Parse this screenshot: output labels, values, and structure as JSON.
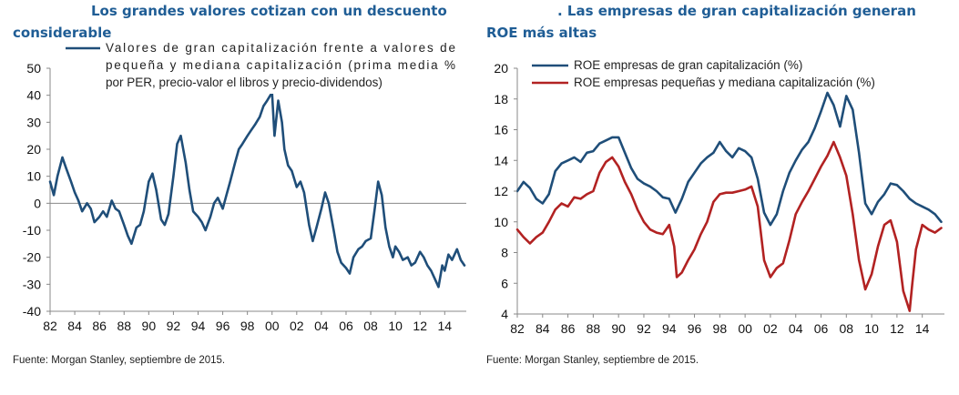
{
  "left": {
    "title_line1": "Los grandes valores cotizan con un descuento",
    "title_line2": "considerable",
    "source": "Fuente: Morgan Stanley, septiembre de 2015."
  },
  "right": {
    "title_line1": ". Las empresas de gran capitalización generan",
    "title_line2": "ROE más altas",
    "source": "Fuente: Morgan Stanley, septiembre de 2015."
  },
  "colors": {
    "blue": "#1f4e79",
    "red": "#b22222",
    "title": "#1f5d95"
  },
  "chart_data": [
    {
      "type": "line",
      "title": "Los grandes valores cotizan con un descuento considerable",
      "xlabel": "",
      "ylabel": "",
      "xlim": [
        1982,
        2015.75
      ],
      "ylim": [
        -40,
        50
      ],
      "y_ticks": [
        50,
        40,
        30,
        20,
        10,
        0,
        -10,
        -20,
        -30,
        -40
      ],
      "x_tick_labels": [
        "82",
        "84",
        "86",
        "88",
        "90",
        "92",
        "94",
        "96",
        "98",
        "00",
        "02",
        "04",
        "06",
        "08",
        "10",
        "12",
        "14"
      ],
      "legend": [
        "Valores de gran capitalización frente a valores de",
        "pequeña y mediana capitalización (prima media %",
        "por PER, precio-valor el libros y precio-dividendos)"
      ],
      "series": [
        {
          "name": "Valores de gran capitalización frente a valores de pequeña y mediana capitalización (prima media % por PER, precio-valor el libros y precio-dividendos)",
          "x": [
            1982.0,
            1982.3,
            1982.6,
            1983.0,
            1983.3,
            1983.7,
            1984.0,
            1984.3,
            1984.6,
            1985.0,
            1985.3,
            1985.6,
            1986.0,
            1986.3,
            1986.6,
            1987.0,
            1987.3,
            1987.6,
            1988.0,
            1988.3,
            1988.6,
            1989.0,
            1989.3,
            1989.6,
            1990.0,
            1990.3,
            1990.6,
            1991.0,
            1991.3,
            1991.6,
            1992.0,
            1992.3,
            1992.6,
            1993.0,
            1993.3,
            1993.6,
            1994.0,
            1994.3,
            1994.6,
            1995.0,
            1995.3,
            1995.6,
            1996.0,
            1996.3,
            1996.6,
            1997.0,
            1997.3,
            1997.6,
            1998.0,
            1998.3,
            1998.6,
            1999.0,
            1999.3,
            1999.6,
            2000.0,
            2000.2,
            2000.5,
            2000.8,
            2001.0,
            2001.3,
            2001.6,
            2002.0,
            2002.3,
            2002.6,
            2003.0,
            2003.3,
            2003.6,
            2004.0,
            2004.3,
            2004.6,
            2005.0,
            2005.3,
            2005.6,
            2006.0,
            2006.3,
            2006.6,
            2007.0,
            2007.3,
            2007.6,
            2008.0,
            2008.3,
            2008.6,
            2008.9,
            2009.2,
            2009.5,
            2009.8,
            2010.0,
            2010.3,
            2010.6,
            2011.0,
            2011.3,
            2011.6,
            2012.0,
            2012.3,
            2012.6,
            2012.9,
            2013.2,
            2013.5,
            2013.8,
            2014.0,
            2014.3,
            2014.6,
            2015.0,
            2015.3,
            2015.6
          ],
          "values": [
            8,
            3,
            10,
            17,
            13,
            8,
            4,
            1,
            -3,
            0,
            -2,
            -7,
            -5,
            -3,
            -5,
            1,
            -2,
            -3,
            -8,
            -12,
            -15,
            -9,
            -8,
            -3,
            8,
            11,
            5,
            -6,
            -8,
            -4,
            10,
            22,
            25,
            15,
            5,
            -3,
            -5,
            -7,
            -10,
            -5,
            0,
            2,
            -2,
            3,
            8,
            15,
            20,
            22,
            25,
            27,
            29,
            32,
            36,
            38,
            41,
            25,
            38,
            30,
            20,
            14,
            12,
            6,
            8,
            4,
            -8,
            -14,
            -9,
            -2,
            4,
            0,
            -10,
            -18,
            -22,
            -24,
            -26,
            -20,
            -17,
            -16,
            -14,
            -13,
            -3,
            8,
            3,
            -9,
            -16,
            -20,
            -16,
            -18,
            -21,
            -20,
            -23,
            -22,
            -18,
            -20,
            -23,
            -25,
            -28,
            -31,
            -23,
            -25,
            -19,
            -21,
            -17,
            -21,
            -23
          ]
        }
      ]
    },
    {
      "type": "line",
      "title": "Las empresas de gran capitalización generan ROE más altas",
      "xlabel": "",
      "ylabel": "",
      "xlim": [
        1982,
        2015.75
      ],
      "ylim": [
        4,
        20
      ],
      "y_ticks": [
        20,
        18,
        16,
        14,
        12,
        10,
        8,
        6,
        4
      ],
      "x_tick_labels": [
        "82",
        "84",
        "86",
        "88",
        "90",
        "92",
        "94",
        "96",
        "98",
        "00",
        "02",
        "04",
        "06",
        "08",
        "10",
        "12",
        "14"
      ],
      "legend": [
        "ROE empresas de gran capitalización (%)",
        "ROE empresas pequeñas y mediana capitalización (%)"
      ],
      "series": [
        {
          "name": "ROE empresas de gran capitalización (%)",
          "x": [
            1982.0,
            1982.5,
            1983.0,
            1983.5,
            1984.0,
            1984.5,
            1985.0,
            1985.5,
            1986.0,
            1986.5,
            1987.0,
            1987.5,
            1988.0,
            1988.5,
            1989.0,
            1989.5,
            1990.0,
            1990.5,
            1991.0,
            1991.5,
            1992.0,
            1992.5,
            1993.0,
            1993.5,
            1994.0,
            1994.5,
            1995.0,
            1995.5,
            1996.0,
            1996.5,
            1997.0,
            1997.5,
            1998.0,
            1998.5,
            1999.0,
            1999.5,
            2000.0,
            2000.5,
            2001.0,
            2001.5,
            2002.0,
            2002.5,
            2003.0,
            2003.5,
            2004.0,
            2004.5,
            2005.0,
            2005.5,
            2006.0,
            2006.5,
            2007.0,
            2007.5,
            2008.0,
            2008.5,
            2009.0,
            2009.5,
            2010.0,
            2010.5,
            2011.0,
            2011.5,
            2012.0,
            2012.5,
            2013.0,
            2013.5,
            2014.0,
            2014.5,
            2015.0,
            2015.5
          ],
          "values": [
            12.0,
            12.6,
            12.2,
            11.5,
            11.2,
            11.8,
            13.3,
            13.8,
            14.0,
            14.2,
            13.9,
            14.5,
            14.6,
            15.1,
            15.3,
            15.5,
            15.5,
            14.5,
            13.5,
            12.8,
            12.5,
            12.3,
            12.0,
            11.6,
            11.5,
            10.6,
            11.5,
            12.6,
            13.2,
            13.8,
            14.2,
            14.5,
            15.2,
            14.6,
            14.2,
            14.8,
            14.6,
            14.2,
            12.8,
            10.6,
            9.8,
            10.5,
            12.0,
            13.2,
            14.0,
            14.7,
            15.2,
            16.1,
            17.2,
            18.4,
            17.6,
            16.2,
            18.2,
            17.3,
            14.5,
            11.2,
            10.5,
            11.3,
            11.8,
            12.5,
            12.4,
            12.0,
            11.5,
            11.2,
            11.0,
            10.8,
            10.5,
            10.0
          ]
        },
        {
          "name": "ROE empresas pequeñas y mediana capitalización (%)",
          "x": [
            1982.0,
            1982.5,
            1983.0,
            1983.5,
            1984.0,
            1984.5,
            1985.0,
            1985.5,
            1986.0,
            1986.5,
            1987.0,
            1987.5,
            1988.0,
            1988.5,
            1989.0,
            1989.5,
            1990.0,
            1990.5,
            1991.0,
            1991.5,
            1992.0,
            1992.5,
            1993.0,
            1993.5,
            1994.0,
            1994.4,
            1994.6,
            1995.0,
            1995.5,
            1996.0,
            1996.5,
            1997.0,
            1997.5,
            1998.0,
            1998.5,
            1999.0,
            1999.5,
            2000.0,
            2000.5,
            2001.0,
            2001.5,
            2002.0,
            2002.5,
            2003.0,
            2003.5,
            2004.0,
            2004.5,
            2005.0,
            2005.5,
            2006.0,
            2006.5,
            2007.0,
            2007.5,
            2008.0,
            2008.5,
            2009.0,
            2009.5,
            2010.0,
            2010.5,
            2011.0,
            2011.5,
            2012.0,
            2012.5,
            2013.0,
            2013.2,
            2013.5,
            2014.0,
            2014.5,
            2015.0,
            2015.5
          ],
          "values": [
            9.5,
            9.0,
            8.6,
            9.0,
            9.3,
            10.0,
            10.8,
            11.2,
            11.0,
            11.6,
            11.5,
            11.8,
            12.0,
            13.2,
            13.9,
            14.2,
            13.6,
            12.6,
            11.8,
            10.8,
            10.0,
            9.5,
            9.3,
            9.2,
            9.8,
            8.4,
            6.4,
            6.7,
            7.5,
            8.2,
            9.2,
            10.0,
            11.3,
            11.8,
            11.9,
            11.9,
            12.0,
            12.1,
            12.3,
            11.0,
            7.5,
            6.4,
            7.0,
            7.3,
            8.8,
            10.5,
            11.3,
            12.0,
            12.8,
            13.6,
            14.3,
            15.2,
            14.2,
            13.0,
            10.5,
            7.5,
            5.6,
            6.6,
            8.4,
            9.8,
            10.1,
            8.7,
            5.5,
            4.2,
            5.9,
            8.2,
            9.8,
            9.5,
            9.3,
            9.6
          ]
        }
      ]
    }
  ]
}
